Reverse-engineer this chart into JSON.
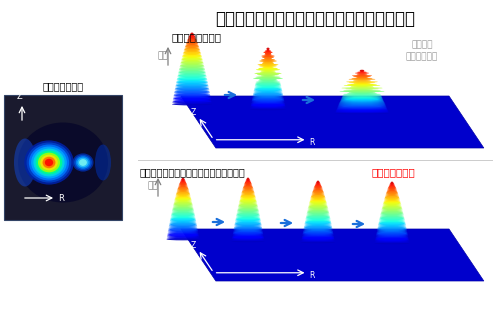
{
  "title": "シミュレーション結果：圧力分布の時間変化",
  "title_fontsize": 12,
  "bg_color": "#ffffff",
  "left_panel_label": "プラズマ断面図",
  "left_panel_bg": "#1a1a2e",
  "top_row_label": "従来の流体モデル",
  "top_row_sublabel": "高圧力が\n保持されない",
  "top_row_sublabel_color": "#999999",
  "bottom_row_label": "イオンの動きの違いを取り入れたモデル",
  "bottom_row_highlight": "高圧力が保持！",
  "bottom_row_highlight_color": "#ff0000",
  "axis_p": "圧力",
  "axis_z": "Z",
  "axis_r": "R",
  "arrow_color": "#1a6fdb",
  "floor_color": "#0000cc",
  "floor_edge_color": "#0000aa"
}
